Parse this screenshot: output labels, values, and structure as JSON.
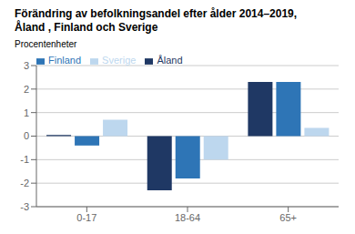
{
  "chart_data": {
    "type": "bar",
    "title": "Förändring av befolkningsandel efter ålder 2014–2019,",
    "subtitle": "Åland , Finland och Sverige",
    "y_label": "Procentenheter",
    "categories": [
      "0-17",
      "18-64",
      "65+"
    ],
    "series": [
      {
        "name": "Åland",
        "color": "#1f3864",
        "values": [
          0.05,
          -2.3,
          2.3
        ]
      },
      {
        "name": "Finland",
        "color": "#2e75b6",
        "values": [
          -0.4,
          -1.8,
          2.3
        ]
      },
      {
        "name": "Sverige",
        "color": "#bdd7ee",
        "values": [
          0.7,
          -1.0,
          0.35
        ]
      }
    ],
    "ylim": [
      -3,
      3
    ],
    "yticks": [
      -3,
      -2,
      -1,
      0,
      1,
      2,
      3
    ],
    "grid": true,
    "legend": "upper left"
  }
}
